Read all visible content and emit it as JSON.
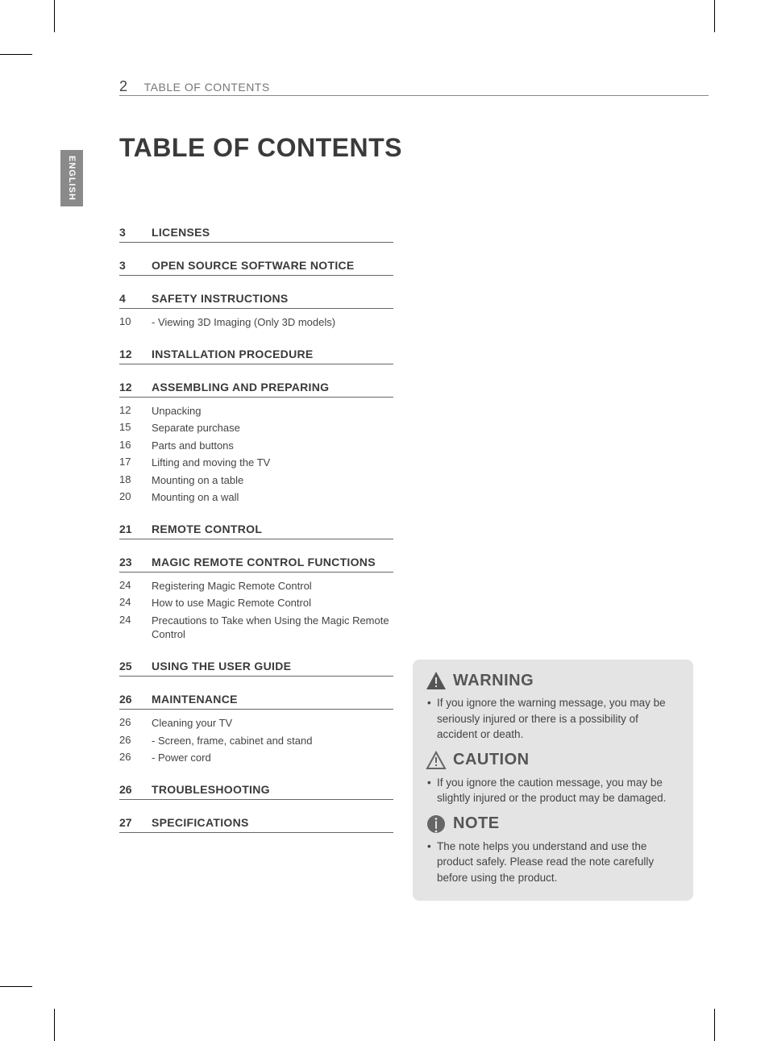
{
  "page": {
    "number": "2",
    "running_title": "TABLE OF CONTENTS"
  },
  "language_tab": "ENGLISH",
  "main_title": "TABLE OF CONTENTS",
  "colors": {
    "text": "#3a3a3a",
    "muted": "#777777",
    "rule": "#666666",
    "tab_bg": "#8a8a8a",
    "callout_bg": "#e4e4e4",
    "warning_fill": "#555555",
    "caution_stroke": "#666666",
    "note_fill": "#666666",
    "heading": "#555555"
  },
  "toc": [
    {
      "page": "3",
      "title": "LICENSES",
      "subs": []
    },
    {
      "page": "3",
      "title": "OPEN SOURCE SOFTWARE NOTICE",
      "subs": []
    },
    {
      "page": "4",
      "title": "SAFETY INSTRUCTIONS",
      "subs": [
        {
          "page": "10",
          "title": "-  Viewing 3D Imaging (Only 3D models)"
        }
      ]
    },
    {
      "page": "12",
      "title": "INSTALLATION PROCEDURE",
      "subs": []
    },
    {
      "page": "12",
      "title": "ASSEMBLING AND PREPARING",
      "subs": [
        {
          "page": "12",
          "title": "Unpacking"
        },
        {
          "page": "15",
          "title": "Separate purchase"
        },
        {
          "page": "16",
          "title": "Parts and buttons"
        },
        {
          "page": "17",
          "title": "Lifting and moving the TV"
        },
        {
          "page": "18",
          "title": "Mounting on a table"
        },
        {
          "page": "20",
          "title": "Mounting on a wall"
        }
      ]
    },
    {
      "page": "21",
      "title": "REMOTE CONTROL",
      "subs": []
    },
    {
      "page": "23",
      "title": "MAGIC REMOTE CONTROL FUNCTIONS",
      "subs": [
        {
          "page": "24",
          "title": "Registering Magic Remote Control"
        },
        {
          "page": "24",
          "title": "How to use Magic Remote Control"
        },
        {
          "page": "24",
          "title": "Precautions to Take when Using the Magic Remote Control"
        }
      ]
    },
    {
      "page": "25",
      "title": "USING THE USER GUIDE",
      "subs": []
    },
    {
      "page": "26",
      "title": "MAINTENANCE",
      "subs": [
        {
          "page": "26",
          "title": "Cleaning your TV"
        },
        {
          "page": "26",
          "title": "-  Screen, frame, cabinet and stand"
        },
        {
          "page": "26",
          "title": "-  Power cord"
        }
      ]
    },
    {
      "page": "26",
      "title": "TROUBLESHOOTING",
      "subs": []
    },
    {
      "page": "27",
      "title": "SPECIFICATIONS",
      "subs": []
    }
  ],
  "callouts": {
    "warning": {
      "title": "WARNING",
      "body": "If you ignore the warning message, you may be seriously injured or there is a possibility of accident or death."
    },
    "caution": {
      "title": "CAUTION",
      "body": "If you ignore the caution message, you may be slightly injured or the product may be damaged."
    },
    "note": {
      "title": "NOTE",
      "body": "The note helps you understand and use the product safely. Please read the note carefully before using the product."
    }
  }
}
